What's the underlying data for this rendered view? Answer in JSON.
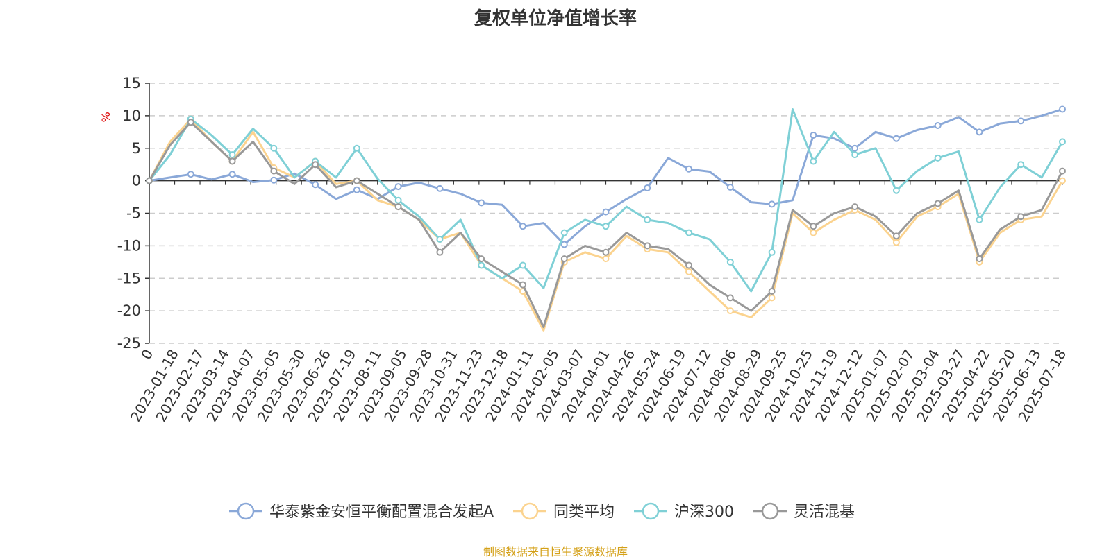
{
  "chart_data": {
    "type": "line",
    "title": "复权单位净值增长率",
    "ylabel": "%",
    "ylim": [
      -25,
      15
    ],
    "yticks": [
      15,
      10,
      5,
      0,
      -5,
      -10,
      -15,
      -20,
      -25
    ],
    "grid": "dashed horizontal",
    "legend_position": "bottom",
    "x_tick_labels": [
      "0",
      "2023-01-18",
      "2023-02-17",
      "2023-03-14",
      "2023-04-07",
      "2023-05-05",
      "2023-05-30",
      "2023-06-26",
      "2023-07-19",
      "2023-08-11",
      "2023-09-05",
      "2023-09-28",
      "2023-10-31",
      "2023-11-23",
      "2023-12-18",
      "2024-01-11",
      "2024-02-05",
      "2024-03-07",
      "2024-04-01",
      "2024-04-26",
      "2024-05-24",
      "2024-06-19",
      "2024-07-12",
      "2024-08-06",
      "2024-08-29",
      "2024-09-25",
      "2024-10-25",
      "2024-11-19",
      "2024-12-12",
      "2025-01-07",
      "2025-02-07",
      "2025-03-04",
      "2025-03-27",
      "2025-04-22",
      "2025-05-20",
      "2025-06-13",
      "2025-07-18"
    ],
    "series": [
      {
        "name": "华泰紫金安恒平衡配置混合发起A",
        "color": "#8aa8d8",
        "values": [
          0,
          0.5,
          1,
          0.2,
          1,
          -0.2,
          0.1,
          1.1,
          -0.6,
          -2.8,
          -1.4,
          -2.8,
          -0.9,
          -0.3,
          -1.2,
          -2,
          -3.4,
          -3.7,
          -7,
          -6.5,
          -9.8,
          -7,
          -4.8,
          -2.8,
          -1.1,
          3.5,
          1.8,
          1.4,
          -1,
          -3.3,
          -3.6,
          -3,
          7,
          6.5,
          5,
          7.5,
          6.5,
          7.8,
          8.5,
          9.8,
          7.5,
          8.8,
          9.2,
          10,
          11
        ]
      },
      {
        "name": "同类平均",
        "color": "#fbd38f",
        "values": [
          0,
          6,
          9.5,
          6,
          3,
          7.5,
          2,
          0.5,
          3,
          -0.5,
          0,
          -3,
          -4,
          -6,
          -9,
          -8,
          -13,
          -15,
          -17,
          -23,
          -12.5,
          -11,
          -12,
          -8.5,
          -10.5,
          -11,
          -14,
          -17,
          -20,
          -21,
          -18,
          -5,
          -8,
          -6,
          -4.5,
          -6,
          -9.5,
          -5.5,
          -4,
          -2,
          -12.5,
          -8,
          -6,
          -5.5,
          0
        ]
      },
      {
        "name": "沪深300",
        "color": "#7fd0d6",
        "values": [
          0,
          4,
          9.5,
          7,
          4,
          8,
          5,
          0.5,
          3,
          0.5,
          5,
          0.3,
          -3,
          -5.5,
          -9,
          -6,
          -13,
          -15,
          -13,
          -16.5,
          -8,
          -6,
          -7,
          -4,
          -6,
          -6.5,
          -8,
          -9,
          -12.5,
          -17,
          -11,
          11,
          3,
          7.5,
          4,
          5,
          -1.5,
          1.5,
          3.5,
          4.5,
          -6,
          -1,
          2.5,
          0.5,
          6
        ]
      },
      {
        "name": "灵活混基",
        "color": "#999999",
        "values": [
          0,
          5.5,
          9,
          6,
          3,
          6,
          1.5,
          -0.5,
          2.5,
          -1,
          0,
          -2,
          -4,
          -6,
          -11,
          -8,
          -12,
          -14,
          -16,
          -22.5,
          -12,
          -10,
          -11,
          -8,
          -10,
          -10.5,
          -13,
          -16,
          -18,
          -20,
          -17,
          -4.5,
          -7,
          -5,
          -4,
          -5.5,
          -8.5,
          -5,
          -3.5,
          -1.5,
          -12,
          -7.5,
          -5.5,
          -4.5,
          1.5
        ]
      }
    ]
  },
  "footer": {
    "source": "制图数据来自恒生聚源数据库"
  },
  "colors": {
    "axis": "#333333",
    "grid": "#cccccc",
    "ylabel": "#dd0000",
    "source": "#d4a017"
  }
}
